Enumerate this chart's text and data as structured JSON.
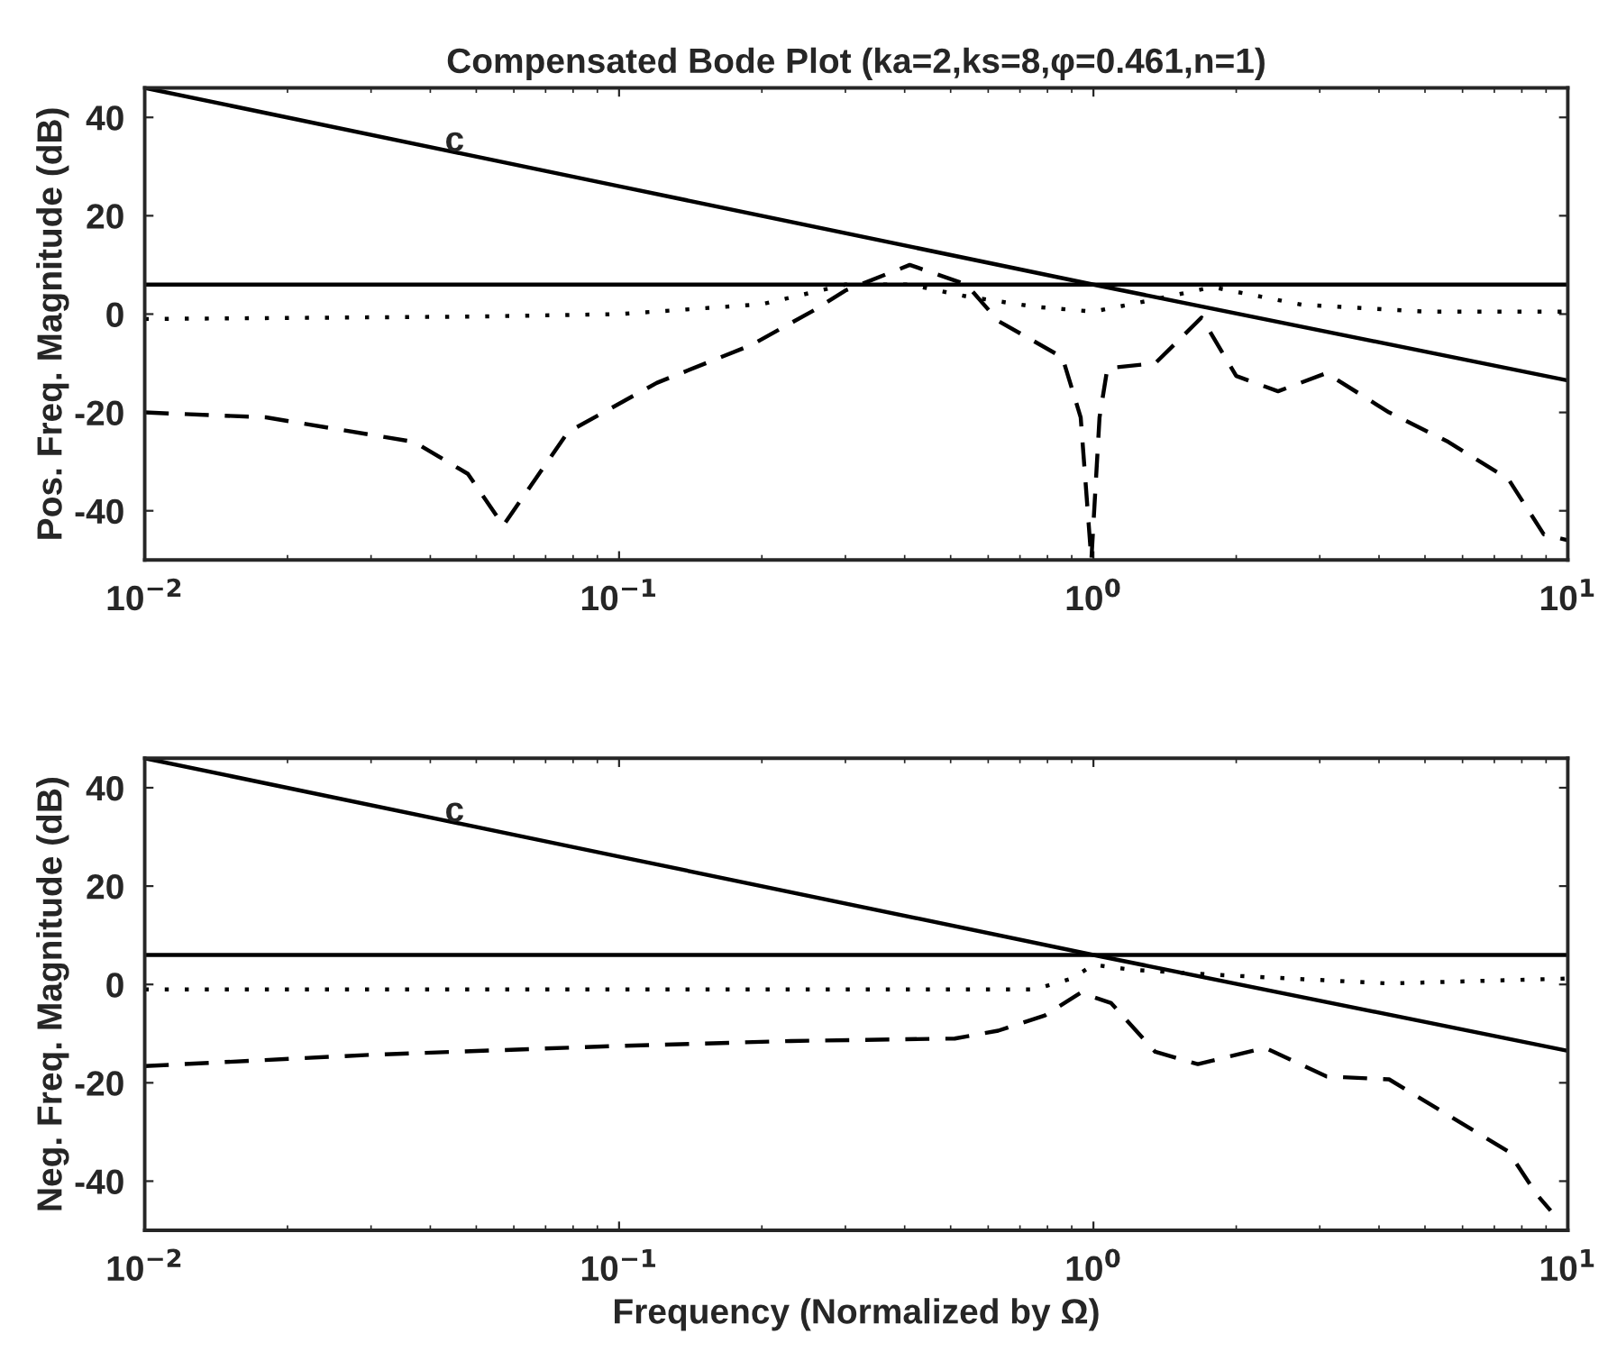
{
  "chart_data": [
    {
      "type": "line",
      "title": "Compensated Bode Plot (ka=2,ks=8,φ=0.461,n=1)",
      "ylabel": "Pos. Freq. Magnitude (dB)",
      "log": "x",
      "grid": false,
      "xlim": [
        0.01,
        10
      ],
      "ylim": [
        -50,
        46
      ],
      "xticks": [
        {
          "value": 0.01,
          "label": "10$^{−2}$"
        },
        {
          "value": 0.1,
          "label": "10$^{−1}$"
        },
        {
          "value": 1,
          "label": "10$^{0}$"
        },
        {
          "value": 10,
          "label": "10$^{1}$"
        }
      ],
      "yticks": [
        -40,
        -20,
        0,
        20,
        40
      ],
      "ref_lines": [
        {
          "axis": "y",
          "value": 6,
          "color": "#000000",
          "line_style": "solid"
        }
      ],
      "annotations": [
        {
          "text": "c",
          "x": 0.045,
          "y": 35
        }
      ],
      "series": [
        {
          "color": "#000000",
          "line_style": "solid",
          "x": [
            0.01,
            0.1,
            1,
            10
          ],
          "values": [
            46,
            26,
            6,
            -13.5
          ]
        },
        {
          "color": "#000000",
          "line_style": "dotted",
          "x": [
            0.01,
            0.05,
            0.1,
            0.2,
            0.3,
            0.41,
            0.54,
            0.75,
            1.0,
            1.35,
            1.78,
            2.75,
            5,
            10
          ],
          "values": [
            -1,
            -0.5,
            0,
            2,
            6,
            6,
            3.6,
            1.5,
            0.5,
            3,
            5.5,
            1.9,
            0.5,
            0.5
          ]
        },
        {
          "color": "#000000",
          "line_style": "dashed",
          "x": [
            0.01,
            0.018,
            0.037,
            0.048,
            0.057,
            0.078,
            0.12,
            0.19,
            0.26,
            0.3,
            0.41,
            0.54,
            0.63,
            0.86,
            0.94,
            0.99,
            1.03,
            1.07,
            1.35,
            1.69,
            2.0,
            2.45,
            3.1,
            4.2,
            5.6,
            7.5,
            8.9,
            10
          ],
          "values": [
            -20,
            -21,
            -26,
            -32.5,
            -43,
            -24,
            -14,
            -6.3,
            1,
            4.8,
            10,
            6,
            -1.4,
            -8.8,
            -21,
            -50,
            -21,
            -11,
            -10,
            -0.7,
            -12.6,
            -15.7,
            -12,
            -20,
            -26,
            -33.6,
            -44.8,
            -46
          ]
        }
      ]
    },
    {
      "type": "line",
      "xlabel": "Frequency (Normalized by Ω)",
      "ylabel": "Neg. Freq. Magnitude (dB)",
      "log": "x",
      "grid": false,
      "xlim": [
        0.01,
        10
      ],
      "ylim": [
        -50,
        46
      ],
      "xticks": [
        {
          "value": 0.01,
          "label": "10$^{−2}$"
        },
        {
          "value": 0.1,
          "label": "10$^{−1}$"
        },
        {
          "value": 1,
          "label": "10$^{0}$"
        },
        {
          "value": 10,
          "label": "10$^{1}$"
        }
      ],
      "yticks": [
        -40,
        -20,
        0,
        20,
        40
      ],
      "ref_lines": [
        {
          "axis": "y",
          "value": 6,
          "color": "#000000",
          "line_style": "solid"
        }
      ],
      "annotations": [
        {
          "text": "c",
          "x": 0.045,
          "y": 35
        }
      ],
      "series": [
        {
          "color": "#000000",
          "line_style": "solid",
          "x": [
            0.01,
            0.1,
            1,
            10
          ],
          "values": [
            46,
            26,
            6,
            -13.5
          ]
        },
        {
          "color": "#000000",
          "line_style": "dotted",
          "x": [
            0.01,
            0.1,
            0.5,
            0.75,
            0.9,
            1.0,
            1.2,
            1.78,
            4.2,
            10
          ],
          "values": [
            -1,
            -1,
            -1,
            -1,
            1.2,
            4,
            3,
            2,
            0.2,
            1.2
          ]
        },
        {
          "color": "#000000",
          "line_style": "dashed",
          "x": [
            0.01,
            0.03,
            0.1,
            0.23,
            0.51,
            0.63,
            0.79,
            0.94,
            1.09,
            1.35,
            1.66,
            2.3,
            3.1,
            4.2,
            5.6,
            7.5,
            8.6,
            9.2
          ],
          "values": [
            -16.6,
            -14.3,
            -12.5,
            -11.5,
            -11,
            -9.4,
            -6.3,
            -1.7,
            -3.8,
            -13.7,
            -16.2,
            -12.9,
            -18.7,
            -19.3,
            -26.6,
            -34,
            -42.7,
            -46
          ]
        }
      ]
    }
  ]
}
